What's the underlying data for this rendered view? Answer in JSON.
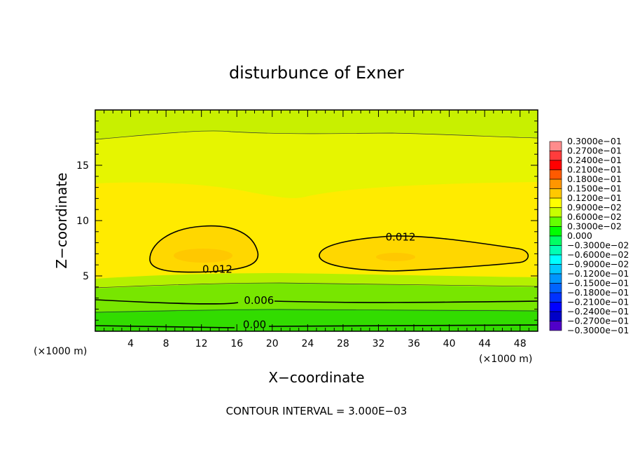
{
  "chart_data": {
    "type": "heatmap",
    "title": "disturbunce of Exner",
    "xlabel": "X−coordinate",
    "ylabel": "Z−coordinate",
    "x_unit": "(×1000 m)",
    "y_unit": "(×1000 m)",
    "xlim": [
      0,
      50
    ],
    "ylim": [
      0,
      20
    ],
    "x_ticks": [
      4,
      8,
      12,
      16,
      20,
      24,
      28,
      32,
      36,
      40,
      44,
      48
    ],
    "y_ticks": [
      5,
      10,
      15
    ],
    "footer": "CONTOUR INTERVAL = 3.000E−03",
    "contour_interval": 0.003,
    "contour_labels": [
      {
        "text": "0.012",
        "x": 13.8,
        "z": 5.6
      },
      {
        "text": "0.012",
        "x": 34.5,
        "z": 8.5
      },
      {
        "text": "0.006",
        "x": 18.5,
        "z": 2.8
      },
      {
        "text": "0.00",
        "x": 18.0,
        "z": 0.6
      }
    ],
    "legend": {
      "levels": [
        "0.3000e−01",
        "0.2700e−01",
        "0.2400e−01",
        "0.2100e−01",
        "0.1800e−01",
        "0.1500e−01",
        "0.1200e−01",
        "0.9000e−02",
        "0.6000e−02",
        "0.3000e−02",
        "0.000",
        "−0.3000e−02",
        "−0.6000e−02",
        "−0.9000e−02",
        "−0.1200e−01",
        "−0.1500e−01",
        "−0.1800e−01",
        "−0.2100e−01",
        "−0.2400e−01",
        "−0.2700e−01",
        "−0.3000e−01"
      ],
      "colors": [
        "#ff8c8c",
        "#ff3c3c",
        "#ff0000",
        "#ff5a00",
        "#ff9600",
        "#ffc800",
        "#ffff00",
        "#c8ff00",
        "#64ff00",
        "#00ff00",
        "#00ff64",
        "#00ffb4",
        "#00ffff",
        "#00c8ff",
        "#0096ff",
        "#0064ff",
        "#0032ff",
        "#0000ff",
        "#0000c8",
        "#5000c8"
      ]
    },
    "fill_colors": {
      "core": "#ffd700",
      "high": "#ffeb00",
      "upper": "#e6f500",
      "mid": "#b4f000",
      "low": "#78e600",
      "ground": "#32dc00",
      "base": "#c8f000"
    }
  }
}
